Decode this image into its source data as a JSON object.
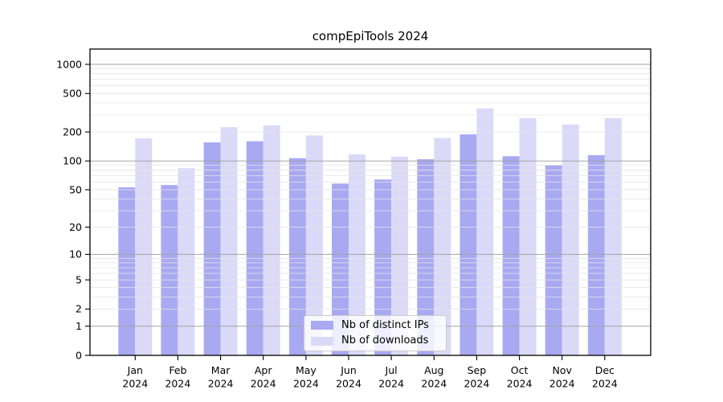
{
  "chart_data": {
    "type": "bar",
    "title": "compEpiTools 2024",
    "x_tick_year": "2024",
    "categories": [
      "Jan",
      "Feb",
      "Mar",
      "Apr",
      "May",
      "Jun",
      "Jul",
      "Aug",
      "Sep",
      "Oct",
      "Nov",
      "Dec"
    ],
    "series": [
      {
        "name": "Nb of distinct IPs",
        "color": "#a9a9f2",
        "values": [
          53,
          56,
          156,
          160,
          107,
          58,
          64,
          104,
          189,
          112,
          91,
          115
        ]
      },
      {
        "name": "Nb of downloads",
        "color": "#dadaf8",
        "values": [
          172,
          84,
          224,
          235,
          184,
          117,
          111,
          173,
          350,
          278,
          238,
          278
        ]
      }
    ],
    "xlabel": "",
    "ylabel": "",
    "y_scale": "log1p",
    "y_ticks": [
      0,
      1,
      2,
      5,
      10,
      20,
      50,
      100,
      200,
      500,
      1000
    ],
    "ylim": [
      0,
      1440
    ],
    "grid": "horizontal; dark lines at 1,10,100,1000; faint minor lines at 2-9 multiples",
    "legend_position": "lower center"
  },
  "colors": {
    "major_grid": "#a3a3a3",
    "minor_grid": "#e4e4e4",
    "axis": "#000000",
    "legend_border": "#cccccc"
  }
}
